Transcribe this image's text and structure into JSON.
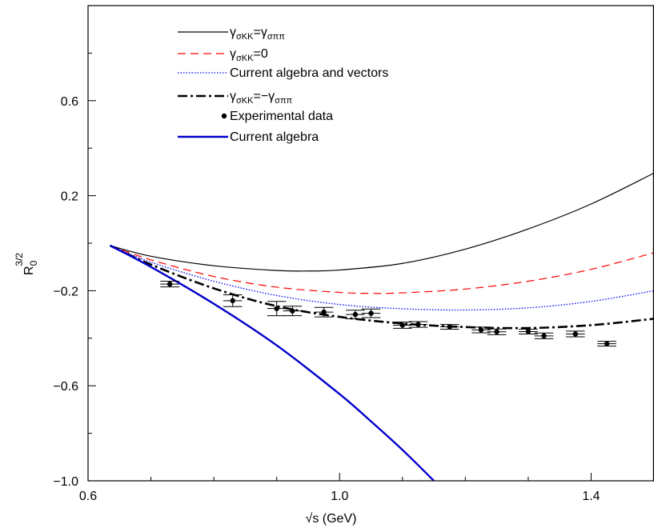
{
  "chart_data": {
    "type": "line",
    "xlabel": "√s (GeV)",
    "ylabel": {
      "base": "R",
      "sub": "0",
      "sup": "3/2"
    },
    "xlim": [
      0.6,
      1.5
    ],
    "ylim": [
      -1.0,
      1.0
    ],
    "xticks": [
      0.6,
      1.0,
      1.4
    ],
    "xtick_labels": [
      "0.6",
      "1.0",
      "1.4"
    ],
    "yticks": [
      -1.0,
      -0.6,
      -0.2,
      0.2,
      0.6
    ],
    "ytick_labels": [
      "−1.0",
      "−0.6",
      "−0.2",
      "0.2",
      "0.6"
    ],
    "minor_xticks": [
      0.7,
      0.8,
      0.9,
      1.1,
      1.2,
      1.3
    ],
    "minor_yticks": [
      -0.8,
      -0.4,
      0.0,
      0.4,
      0.8
    ],
    "grid": false,
    "legend_position": "top-left",
    "legend": [
      {
        "parts": [
          {
            "t": "γ",
            "s": "main"
          },
          {
            "t": "σKK",
            "s": "sub"
          },
          {
            "t": "=γ",
            "s": "main"
          },
          {
            "t": "σππ",
            "s": "sub"
          }
        ],
        "color": "#000000",
        "dash": "",
        "width": 1.2,
        "marker": false
      },
      {
        "parts": [
          {
            "t": "γ",
            "s": "main"
          },
          {
            "t": "σKK",
            "s": "sub"
          },
          {
            "t": "=0",
            "s": "main"
          }
        ],
        "color": "#ff0000",
        "dash": "10,6",
        "width": 1.2,
        "marker": false
      },
      {
        "parts": [
          {
            "t": "Current algebra and vectors",
            "s": "main"
          }
        ],
        "color": "#0000ff",
        "dash": "1.5,2",
        "width": 1.3,
        "marker": false
      },
      {
        "parts": [
          {
            "t": "γ",
            "s": "main"
          },
          {
            "t": "σKK",
            "s": "sub"
          },
          {
            "t": "=−γ",
            "s": "main"
          },
          {
            "t": "σππ",
            "s": "sub"
          }
        ],
        "color": "#000000",
        "dash": "12,4,3,4",
        "width": 2.6,
        "marker": false
      },
      {
        "parts": [
          {
            "t": "Experimental data",
            "s": "main"
          }
        ],
        "color": "#000000",
        "dash": "",
        "width": 0,
        "marker": true
      },
      {
        "parts": [
          {
            "t": "Current algebra",
            "s": "main"
          }
        ],
        "color": "#0000cc",
        "dash": "",
        "width": 2.4,
        "marker": false
      }
    ],
    "series": [
      {
        "color": "#000000",
        "dash": "",
        "width": 1.2,
        "x": [
          0.635,
          0.7,
          0.8,
          0.9,
          0.95,
          1.0,
          1.1,
          1.2,
          1.3,
          1.4,
          1.5
        ],
        "y": [
          -0.01,
          -0.055,
          -0.095,
          -0.115,
          -0.117,
          -0.113,
          -0.085,
          -0.025,
          0.06,
          0.165,
          0.295
        ]
      },
      {
        "color": "#ff0000",
        "dash": "10,6",
        "width": 1.2,
        "x": [
          0.635,
          0.7,
          0.8,
          0.9,
          1.0,
          1.05,
          1.1,
          1.2,
          1.3,
          1.4,
          1.5
        ],
        "y": [
          -0.01,
          -0.07,
          -0.14,
          -0.185,
          -0.207,
          -0.211,
          -0.209,
          -0.193,
          -0.16,
          -0.11,
          -0.04
        ]
      },
      {
        "color": "#0000ff",
        "dash": "1.5,2",
        "width": 1.3,
        "x": [
          0.635,
          0.7,
          0.8,
          0.9,
          1.0,
          1.1,
          1.2,
          1.3,
          1.4,
          1.5
        ],
        "y": [
          -0.01,
          -0.08,
          -0.16,
          -0.22,
          -0.258,
          -0.276,
          -0.281,
          -0.272,
          -0.245,
          -0.2
        ]
      },
      {
        "color": "#000000",
        "dash": "12,4,3,4",
        "width": 2.6,
        "x": [
          0.635,
          0.7,
          0.8,
          0.9,
          1.0,
          1.1,
          1.2,
          1.3,
          1.4,
          1.5
        ],
        "y": [
          -0.01,
          -0.09,
          -0.19,
          -0.265,
          -0.31,
          -0.338,
          -0.353,
          -0.357,
          -0.345,
          -0.318
        ]
      },
      {
        "color": "#0000cc",
        "dash": "",
        "width": 2.4,
        "x": [
          0.635,
          0.7,
          0.8,
          0.9,
          1.0,
          1.05,
          1.1,
          1.15
        ],
        "y": [
          -0.01,
          -0.1,
          -0.255,
          -0.43,
          -0.635,
          -0.75,
          -0.87,
          -1.0
        ]
      }
    ],
    "points": {
      "x": [
        0.73,
        0.83,
        0.9,
        0.925,
        0.975,
        1.025,
        1.05,
        1.1,
        1.125,
        1.175,
        1.225,
        1.25,
        1.3,
        1.325,
        1.375,
        1.425
      ],
      "y": [
        -0.172,
        -0.242,
        -0.275,
        -0.285,
        -0.29,
        -0.3,
        -0.295,
        -0.345,
        -0.342,
        -0.352,
        -0.365,
        -0.373,
        -0.372,
        -0.39,
        -0.382,
        -0.423
      ],
      "xerr": [
        0.015,
        0.015,
        0.015,
        0.015,
        0.015,
        0.015,
        0.015,
        0.015,
        0.015,
        0.015,
        0.015,
        0.015,
        0.015,
        0.015,
        0.015,
        0.015
      ],
      "yerr": [
        0.012,
        0.025,
        0.03,
        0.02,
        0.02,
        0.018,
        0.018,
        0.013,
        0.012,
        0.01,
        0.012,
        0.012,
        0.01,
        0.012,
        0.012,
        0.01
      ],
      "color": "#000000"
    }
  }
}
